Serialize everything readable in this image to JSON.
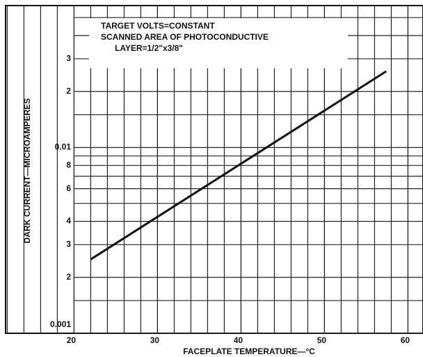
{
  "chart_data": {
    "type": "line",
    "log_y": true,
    "grid": true,
    "xgrid_step": 2,
    "xlabel": "FACEPLATE TEMPERATURE—°C",
    "ylabel": "DARK CURRENT—MICROAMPERES",
    "annotations": [
      "TARGET VOLTS=CONSTANT",
      "SCANNED AREA OF PHOTOCONDUCTIVE",
      "LAYER=1/2\"x3/8\""
    ],
    "xlim": [
      11.8,
      61.8
    ],
    "xticks": [
      20,
      30,
      40,
      50,
      60
    ],
    "ylim": [
      0.001,
      0.058
    ],
    "yticks": [
      0.001,
      {
        "value": 0.002,
        "label": "2"
      },
      {
        "value": 0.003,
        "label": "3"
      },
      {
        "value": 0.004,
        "label": "4"
      },
      {
        "value": 0.006,
        "label": "6"
      },
      {
        "value": 0.008,
        "label": "8"
      },
      0.01,
      {
        "value": 0.02,
        "label": "2"
      },
      {
        "value": 0.03,
        "label": "3"
      }
    ],
    "yminor": [
      0.0015,
      0.005,
      0.007,
      0.009,
      0.015,
      0.04,
      0.05
    ],
    "series": [
      {
        "color": "#111111",
        "x": [
          22,
          57.4
        ],
        "values": [
          0.0025,
          0.0257
        ]
      }
    ]
  }
}
